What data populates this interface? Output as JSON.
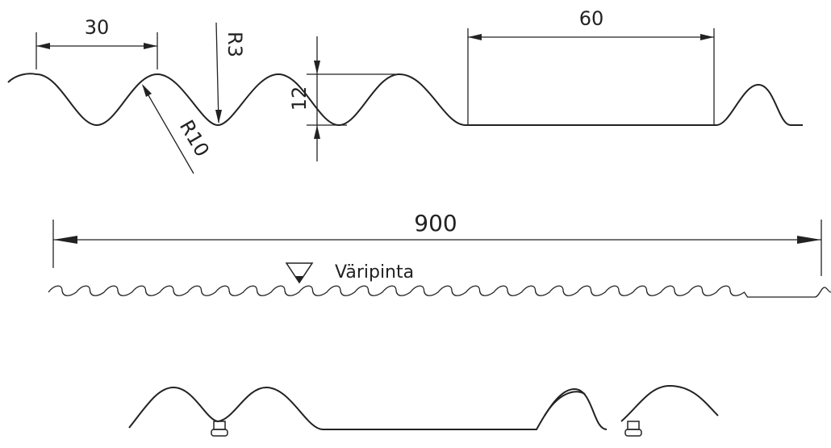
{
  "dimensions": {
    "pitch": "30",
    "inner_radius": "R3",
    "outer_radius": "R10",
    "height": "12",
    "flat": "60",
    "width": "900"
  },
  "surface_label": "Väripinta"
}
